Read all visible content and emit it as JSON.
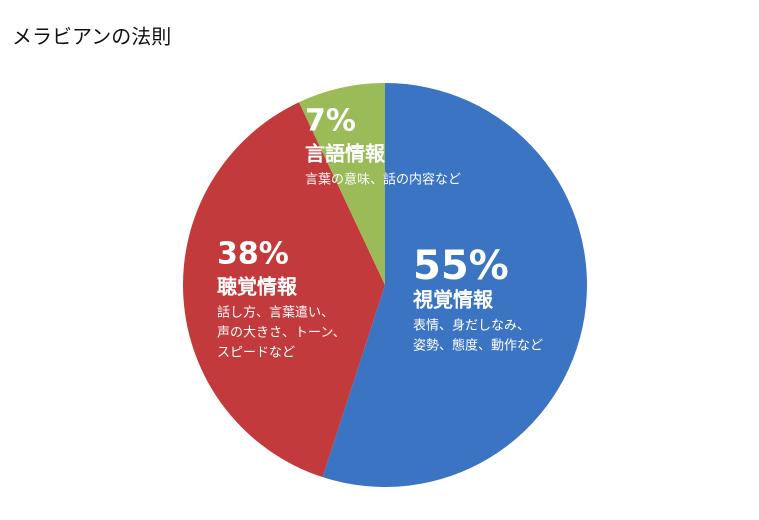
{
  "chart_data": {
    "type": "pie",
    "title": "メラビアンの法則",
    "categories": [
      "視覚情報",
      "聴覚情報",
      "言語情報"
    ],
    "values": [
      55,
      38,
      7
    ],
    "value_labels": [
      "55%",
      "38%",
      "7%"
    ],
    "descriptions": [
      [
        "表情、身だしなみ、",
        "姿勢、態度、動作など"
      ],
      [
        "話し方、言葉遣い、",
        "声の大きさ、トーン、",
        "スピードなど"
      ],
      [
        "言葉の意味、話の内容など"
      ]
    ],
    "colors": [
      "#3b74c2",
      "#c23a3c",
      "#9bbb59"
    ]
  }
}
